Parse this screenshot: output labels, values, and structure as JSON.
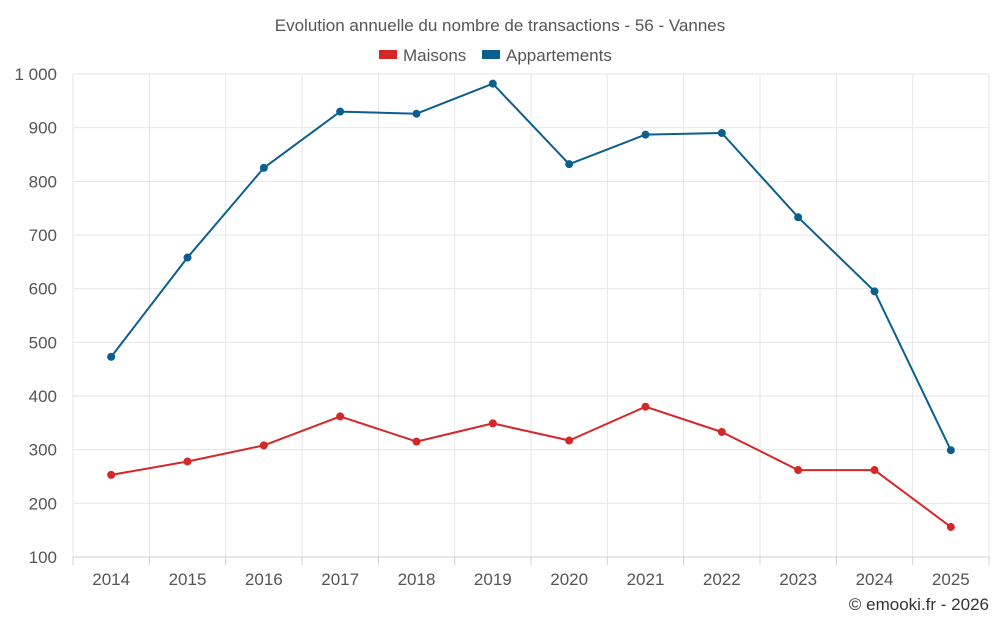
{
  "chart_data": {
    "type": "line",
    "title": "Evolution annuelle du nombre de transactions - 56 - Vannes",
    "categories": [
      "2014",
      "2015",
      "2016",
      "2017",
      "2018",
      "2019",
      "2020",
      "2021",
      "2022",
      "2023",
      "2024",
      "2025"
    ],
    "series": [
      {
        "name": "Maisons",
        "color": "#d62728",
        "values": [
          253,
          278,
          308,
          362,
          315,
          349,
          317,
          380,
          333,
          262,
          262,
          156
        ]
      },
      {
        "name": "Appartements",
        "color": "#0b5f8f",
        "values": [
          473,
          658,
          825,
          930,
          926,
          982,
          832,
          887,
          890,
          733,
          595,
          299
        ]
      }
    ],
    "y_ticks": [
      {
        "value": 100,
        "label": "100"
      },
      {
        "value": 200,
        "label": "200"
      },
      {
        "value": 300,
        "label": "300"
      },
      {
        "value": 400,
        "label": "400"
      },
      {
        "value": 500,
        "label": "500"
      },
      {
        "value": 600,
        "label": "600"
      },
      {
        "value": 700,
        "label": "700"
      },
      {
        "value": 800,
        "label": "800"
      },
      {
        "value": 900,
        "label": "900"
      },
      {
        "value": 1000,
        "label": "1 000"
      }
    ],
    "ylim": [
      100,
      1000
    ],
    "xlabel": "",
    "ylabel": "",
    "grid": true,
    "legend_position": "top-center"
  },
  "credit": "© emooki.fr - 2026"
}
